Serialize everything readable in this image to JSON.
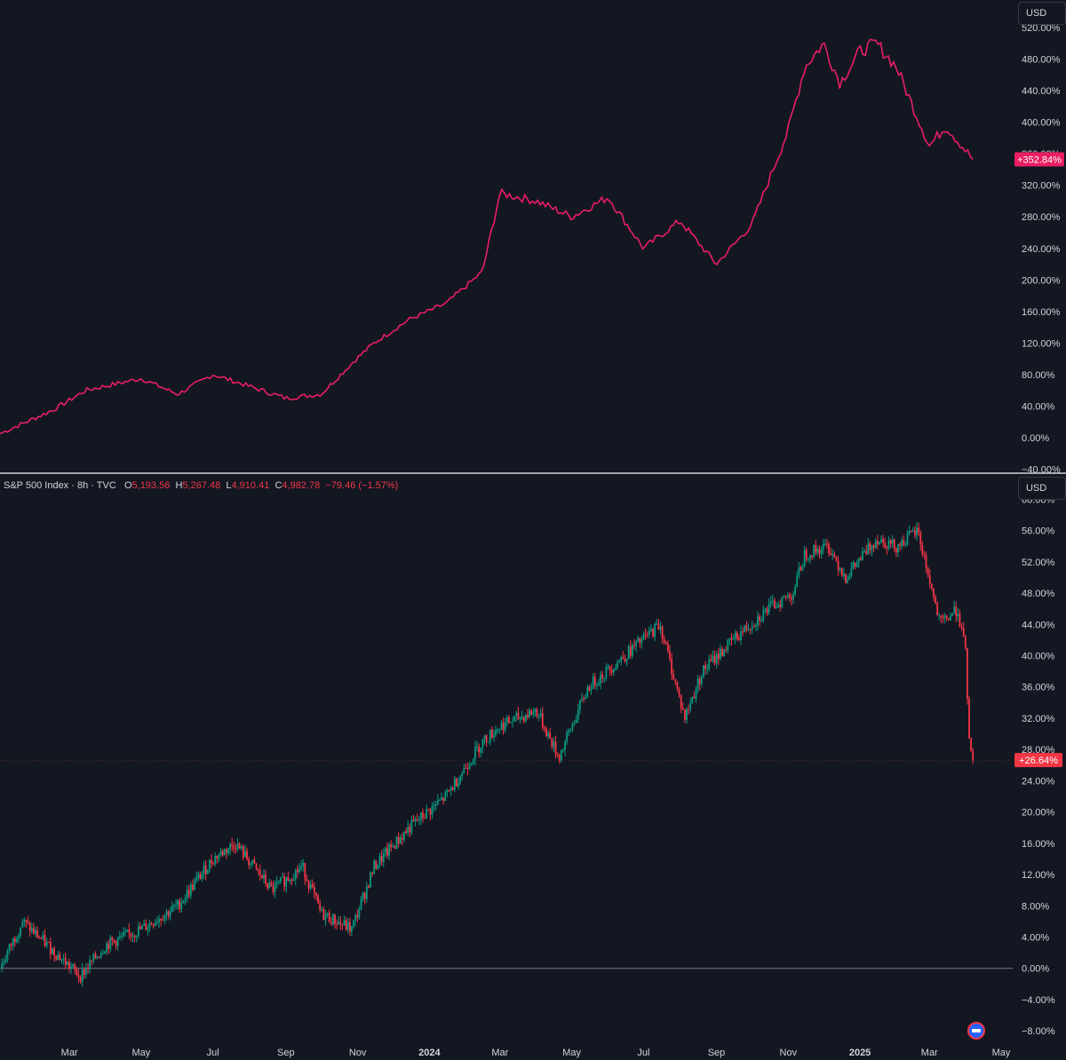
{
  "chart_data": [
    {
      "type": "line",
      "currency": "USD",
      "series": [
        {
          "color": "#e91e63",
          "x": [
            "2023-01-01",
            "2023-02-15",
            "2023-03-15",
            "2023-05-01",
            "2023-06-01",
            "2023-07-01",
            "2023-08-01",
            "2023-09-01",
            "2023-10-01",
            "2023-10-31",
            "2023-11-15",
            "2023-12-15",
            "2024-01-15",
            "2024-02-15",
            "2024-03-01",
            "2024-04-01",
            "2024-05-01",
            "2024-06-01",
            "2024-07-01",
            "2024-08-01",
            "2024-09-01",
            "2024-10-01",
            "2024-11-01",
            "2024-11-15",
            "2024-12-01",
            "2024-12-15",
            "2025-01-01",
            "2025-01-15",
            "2025-02-01",
            "2025-02-15",
            "2025-03-01",
            "2025-03-15",
            "2025-04-07"
          ],
          "y": [
            5,
            35,
            60,
            75,
            55,
            80,
            65,
            50,
            55,
            100,
            120,
            150,
            170,
            210,
            310,
            300,
            280,
            305,
            240,
            275,
            220,
            270,
            390,
            470,
            500,
            450,
            490,
            500,
            470,
            420,
            370,
            395,
            352.84
          ]
        }
      ],
      "y_ticks": [
        "520.00%",
        "480.00%",
        "440.00%",
        "400.00%",
        "360.00%",
        "320.00%",
        "280.00%",
        "240.00%",
        "200.00%",
        "160.00%",
        "120.00%",
        "80.00%",
        "40.00%",
        "0.00%",
        "−40.00%"
      ],
      "ylim": [
        -44,
        555
      ],
      "last_value_label": "+352.84%",
      "last_value_color": "#e91e63",
      "grid": false
    },
    {
      "type": "candlestick",
      "title": "S&P 500 Index · 8h · TVC",
      "currency": "USD",
      "ohlc": {
        "open_label": "O",
        "open": "5,193.56",
        "high_label": "H",
        "high": "5,267.48",
        "low_label": "L",
        "low": "4,910.41",
        "close_label": "C",
        "close": "4,982.78",
        "change": "−79.46 (−1.57%)"
      },
      "series": [
        {
          "name": "S&P 500 Index",
          "up_color": "#089981",
          "down_color": "#f23645",
          "x": [
            "2023-01-01",
            "2023-01-20",
            "2023-02-10",
            "2023-03-10",
            "2023-04-01",
            "2023-05-01",
            "2023-06-01",
            "2023-07-01",
            "2023-07-20",
            "2023-08-20",
            "2023-09-15",
            "2023-10-01",
            "2023-10-27",
            "2023-11-15",
            "2023-12-15",
            "2024-01-15",
            "2024-02-15",
            "2024-03-01",
            "2024-04-01",
            "2024-04-20",
            "2024-05-15",
            "2024-06-15",
            "2024-07-15",
            "2024-08-05",
            "2024-08-20",
            "2024-09-15",
            "2024-10-15",
            "2024-11-05",
            "2024-11-15",
            "2024-12-05",
            "2024-12-20",
            "2025-01-15",
            "2025-02-01",
            "2025-02-19",
            "2025-03-10",
            "2025-03-25",
            "2025-04-01",
            "2025-04-04",
            "2025-04-07"
          ],
          "y": [
            0,
            6,
            3,
            -1,
            3,
            5,
            8,
            14,
            16,
            10,
            13,
            7,
            5,
            13,
            18,
            22,
            29,
            31,
            33,
            27,
            36,
            40,
            44,
            32,
            38,
            42,
            46,
            48,
            53,
            54,
            50,
            55,
            54,
            56,
            44,
            46,
            40,
            28,
            26.64
          ]
        }
      ],
      "y_ticks": [
        "60.00%",
        "56.00%",
        "52.00%",
        "48.00%",
        "44.00%",
        "40.00%",
        "36.00%",
        "32.00%",
        "28.00%",
        "24.00%",
        "20.00%",
        "16.00%",
        "12.00%",
        "8.00%",
        "4.00%",
        "0.00%",
        "−4.00%",
        "−8.00%"
      ],
      "ylim": [
        -9,
        60.5
      ],
      "baseline": 0,
      "last_value_label": "+26.64%",
      "last_value_color": "#f23645",
      "grid": false
    }
  ],
  "x_axis": {
    "ticks": [
      {
        "label": "Mar",
        "date": "2023-03-01",
        "bold": false
      },
      {
        "label": "May",
        "date": "2023-05-01",
        "bold": false
      },
      {
        "label": "Jul",
        "date": "2023-07-01",
        "bold": false
      },
      {
        "label": "Sep",
        "date": "2023-09-01",
        "bold": false
      },
      {
        "label": "Nov",
        "date": "2023-11-01",
        "bold": false
      },
      {
        "label": "2024",
        "date": "2024-01-01",
        "bold": true
      },
      {
        "label": "Mar",
        "date": "2024-03-01",
        "bold": false
      },
      {
        "label": "May",
        "date": "2024-05-01",
        "bold": false
      },
      {
        "label": "Jul",
        "date": "2024-07-01",
        "bold": false
      },
      {
        "label": "Sep",
        "date": "2024-09-01",
        "bold": false
      },
      {
        "label": "Nov",
        "date": "2024-11-01",
        "bold": false
      },
      {
        "label": "2025",
        "date": "2025-01-01",
        "bold": true
      },
      {
        "label": "Mar",
        "date": "2025-03-01",
        "bold": false
      },
      {
        "label": "May",
        "date": "2025-05-01",
        "bold": false
      }
    ],
    "start": "2023-01-01",
    "end": "2025-05-01"
  },
  "colors": {
    "background": "#131722",
    "text": "#d1d4dc",
    "separator": "#d1d4dc",
    "up": "#089981",
    "down": "#f23645",
    "line": "#e91e63"
  },
  "icons": {
    "flag": "us-flag-icon"
  }
}
